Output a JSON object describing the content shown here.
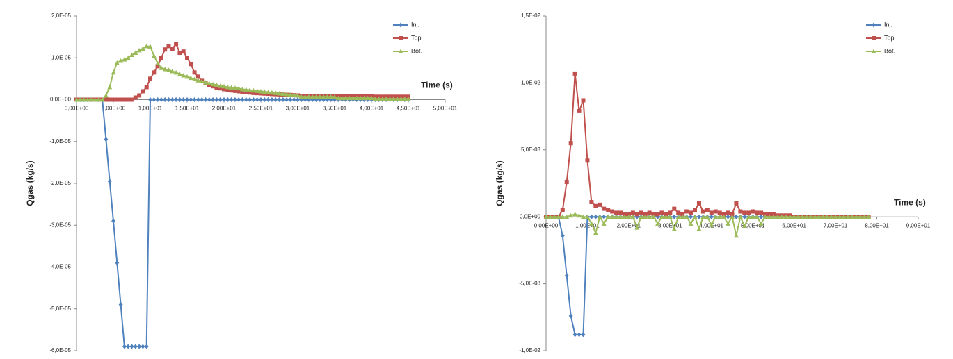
{
  "chart_data": [
    {
      "type": "line",
      "x_label": "Time (s)",
      "y_label": "Qgas  (kg/s)",
      "legend": "upper right",
      "xlim": [
        0,
        50
      ],
      "ylim": [
        -6e-05,
        2e-05
      ],
      "xticks": [
        {
          "value": 0,
          "label": "0,00E+00"
        },
        {
          "value": 5,
          "label": "5,00E+00"
        },
        {
          "value": 10,
          "label": "1,00E+01"
        },
        {
          "value": 15,
          "label": "1,50E+01"
        },
        {
          "value": 20,
          "label": "2,00E+01"
        },
        {
          "value": 25,
          "label": "2,50E+01"
        },
        {
          "value": 30,
          "label": "3,00E+01"
        },
        {
          "value": 35,
          "label": "3,50E+01"
        },
        {
          "value": 40,
          "label": "4,00E+01"
        },
        {
          "value": 45,
          "label": "4,50E+01"
        },
        {
          "value": 50,
          "label": "5,00E+01"
        }
      ],
      "yticks": [
        {
          "value": 2e-05,
          "label": "2,0E-05"
        },
        {
          "value": 1e-05,
          "label": "1,0E-05"
        },
        {
          "value": 0,
          "label": "0,0E+00"
        },
        {
          "value": -1e-05,
          "label": "-1,0E-05"
        },
        {
          "value": -2e-05,
          "label": "-2,0E-05"
        },
        {
          "value": -3e-05,
          "label": "-3,0E-05"
        },
        {
          "value": -4e-05,
          "label": "-4,0E-05"
        },
        {
          "value": -5e-05,
          "label": "-5,0E-05"
        },
        {
          "value": -6e-05,
          "label": "-6,0E-05"
        }
      ],
      "x": [
        0,
        0.5,
        1,
        1.5,
        2,
        2.5,
        3,
        3.5,
        4,
        4.5,
        5,
        5.5,
        6,
        6.5,
        7,
        7.5,
        8,
        8.5,
        9,
        9.5,
        10,
        10.5,
        11,
        11.5,
        12,
        12.5,
        13,
        13.5,
        14,
        14.5,
        15,
        15.5,
        16,
        16.5,
        17,
        17.5,
        18,
        18.5,
        19,
        19.5,
        20,
        20.5,
        21,
        21.5,
        22,
        22.5,
        23,
        23.5,
        24,
        24.5,
        25,
        25.5,
        26,
        26.5,
        27,
        27.5,
        28,
        28.5,
        29,
        29.5,
        30,
        30.5,
        31,
        31.5,
        32,
        32.5,
        33,
        33.5,
        34,
        34.5,
        35,
        35.5,
        36,
        36.5,
        37,
        37.5,
        38,
        38.5,
        39,
        39.5,
        40,
        40.5,
        41,
        41.5,
        42,
        42.5,
        43,
        43.5,
        44,
        44.5,
        45
      ],
      "series": [
        {
          "name": "Inj.",
          "color": "#4f81bd",
          "marker": "diamond",
          "values": [
            0,
            0,
            0,
            0,
            0,
            0,
            0,
            0,
            -9.5e-06,
            -1.95e-05,
            -2.9e-05,
            -3.9e-05,
            -4.9e-05,
            -5.9e-05,
            -5.9e-05,
            -5.9e-05,
            -5.9e-05,
            -5.9e-05,
            -5.9e-05,
            -5.9e-05,
            0,
            0,
            0,
            0,
            0,
            0,
            0,
            0,
            0,
            0,
            0,
            0,
            0,
            0,
            0,
            0,
            0,
            0,
            0,
            0,
            0,
            0,
            0,
            0,
            0,
            0,
            0,
            0,
            0,
            0,
            0,
            0,
            0,
            0,
            0,
            0,
            0,
            0,
            0,
            0,
            0,
            0,
            0,
            0,
            0,
            0,
            0,
            0,
            0,
            0,
            0,
            0,
            0,
            0,
            0,
            0,
            0,
            0,
            0,
            0,
            0,
            0,
            0,
            0,
            0,
            0,
            0,
            0,
            0,
            0,
            0
          ]
        },
        {
          "name": "Top",
          "color": "#c0504d",
          "marker": "square",
          "values": [
            0,
            0,
            0,
            0,
            0,
            0,
            0,
            0,
            0,
            0,
            0,
            0,
            0,
            0,
            0,
            0,
            5e-07,
            1e-06,
            2e-06,
            3e-06,
            5e-06,
            6.5e-06,
            8e-06,
            1e-05,
            1.2e-05,
            1.28e-05,
            1.22e-05,
            1.33e-05,
            1.12e-05,
            1.15e-05,
            1e-05,
            8.5e-06,
            6.5e-06,
            5.5e-06,
            4.5e-06,
            4e-06,
            3.5e-06,
            3.2e-06,
            2.9e-06,
            2.7e-06,
            2.5e-06,
            2.3e-06,
            2.2e-06,
            2.1e-06,
            2e-06,
            1.9e-06,
            1.8e-06,
            1.7e-06,
            1.6e-06,
            1.55e-06,
            1.5e-06,
            1.45e-06,
            1.4e-06,
            1.35e-06,
            1.3e-06,
            1.25e-06,
            1.2e-06,
            1.15e-06,
            1.1e-06,
            1.05e-06,
            1e-06,
            9e-07,
            9e-07,
            9e-07,
            9e-07,
            9e-07,
            9e-07,
            9e-07,
            9e-07,
            9e-07,
            9e-07,
            8e-07,
            8e-07,
            8e-07,
            8e-07,
            8e-07,
            8e-07,
            8e-07,
            8e-07,
            8e-07,
            8e-07,
            7e-07,
            7e-07,
            7e-07,
            7e-07,
            7e-07,
            7e-07,
            7e-07,
            7e-07,
            7e-07,
            7e-07
          ]
        },
        {
          "name": "Bot.",
          "color": "#9bbb59",
          "marker": "triangle",
          "values": [
            0,
            0,
            0,
            0,
            0,
            0,
            0,
            0,
            1e-06,
            3e-06,
            6.5e-06,
            8.8e-06,
            9.3e-06,
            9.6e-06,
            1e-05,
            1.07e-05,
            1.12e-05,
            1.18e-05,
            1.22e-05,
            1.28e-05,
            1.27e-05,
            1.05e-05,
            8.7e-06,
            7.6e-06,
            7.3e-06,
            7.1e-06,
            6.8e-06,
            6.5e-06,
            6.1e-06,
            5.8e-06,
            5.5e-06,
            5.2e-06,
            4.9e-06,
            4.6e-06,
            4.4e-06,
            4.1e-06,
            3.9e-06,
            3.7e-06,
            3.5e-06,
            3.3e-06,
            3.2e-06,
            3e-06,
            2.9e-06,
            2.8e-06,
            2.7e-06,
            2.5e-06,
            2.4e-06,
            2.3e-06,
            2.2e-06,
            2.1e-06,
            2e-06,
            1.9e-06,
            1.8e-06,
            1.7e-06,
            1.6e-06,
            1.5e-06,
            1.4e-06,
            1.3e-06,
            1.2e-06,
            1.1e-06,
            1e-06,
            7e-07,
            7e-07,
            7e-07,
            7e-07,
            7e-07,
            7e-07,
            7e-07,
            7e-07,
            7e-07,
            7e-07,
            4e-07,
            4e-07,
            4e-07,
            4e-07,
            4e-07,
            4e-07,
            4e-07,
            4e-07,
            4e-07,
            4e-07,
            2e-07,
            2e-07,
            2e-07,
            2e-07,
            2e-07,
            2e-07,
            2e-07,
            2e-07,
            2e-07,
            2e-07
          ]
        }
      ]
    },
    {
      "type": "line",
      "x_label": "Time (s)",
      "y_label": "Qgas  (kg/s)",
      "legend": "upper right",
      "xlim": [
        0,
        90
      ],
      "ylim": [
        -0.01,
        0.015
      ],
      "xticks": [
        {
          "value": 0,
          "label": "0,00E+00"
        },
        {
          "value": 10,
          "label": "1,00E+01"
        },
        {
          "value": 20,
          "label": "2,00E+01"
        },
        {
          "value": 30,
          "label": "3,00E+01"
        },
        {
          "value": 40,
          "label": "4,00E+01"
        },
        {
          "value": 50,
          "label": "5,00E+01"
        },
        {
          "value": 60,
          "label": "6,00E+01"
        },
        {
          "value": 70,
          "label": "7,00E+01"
        },
        {
          "value": 80,
          "label": "8,00E+01"
        },
        {
          "value": 90,
          "label": "9,00E+01"
        }
      ],
      "yticks": [
        {
          "value": 0.015,
          "label": "1,5E-02"
        },
        {
          "value": 0.01,
          "label": "1,0E-02"
        },
        {
          "value": 0.005,
          "label": "5,0E-03"
        },
        {
          "value": 0,
          "label": "0,0E+00"
        },
        {
          "value": -0.005,
          "label": "-5,0E-03"
        },
        {
          "value": -0.01,
          "label": "-1,0E-02"
        }
      ],
      "x": [
        0,
        1,
        2,
        3,
        4,
        5,
        6,
        7,
        8,
        9,
        10,
        11,
        12,
        13,
        14,
        15,
        16,
        17,
        18,
        19,
        20,
        21,
        22,
        23,
        24,
        25,
        26,
        27,
        28,
        29,
        30,
        31,
        32,
        33,
        34,
        35,
        36,
        37,
        38,
        39,
        40,
        41,
        42,
        43,
        44,
        45,
        46,
        47,
        48,
        49,
        50,
        51,
        52,
        53,
        54,
        55,
        56,
        57,
        58,
        59,
        60,
        61,
        62,
        63,
        64,
        65,
        66,
        67,
        68,
        69,
        70,
        71,
        72,
        73,
        74,
        75,
        76,
        77,
        78
      ],
      "series": [
        {
          "name": "Inj.",
          "color": "#4f81bd",
          "marker": "diamond",
          "values": [
            0,
            0,
            0,
            0,
            -0.0014,
            -0.0044,
            -0.0074,
            -0.0088,
            -0.0088,
            -0.0088,
            0,
            0,
            0,
            0,
            0,
            0,
            0,
            0,
            0,
            0,
            0,
            0,
            0,
            0,
            0,
            0,
            0,
            0,
            0,
            0,
            0,
            0,
            0,
            0,
            0,
            0,
            0,
            0,
            0,
            0,
            0,
            0,
            0,
            0,
            0,
            0,
            0,
            0,
            0,
            0,
            0,
            0,
            0,
            0,
            0,
            0,
            0,
            0,
            0,
            0,
            0,
            0,
            0,
            0,
            0,
            0,
            0,
            0,
            0,
            0,
            0,
            0,
            0,
            0,
            0,
            0,
            0,
            0,
            0
          ]
        },
        {
          "name": "Top",
          "color": "#c0504d",
          "marker": "square",
          "values": [
            0,
            0,
            0,
            0,
            0.0005,
            0.0026,
            0.0055,
            0.0107,
            0.0079,
            0.0087,
            0.0042,
            0.0011,
            0.0008,
            0.0009,
            0.0006,
            0.0005,
            0.0004,
            0.0003,
            0.0003,
            0.0002,
            0.0002,
            0.0003,
            0.0002,
            0.0003,
            0.0002,
            0.0003,
            0.0002,
            0.0002,
            0.0003,
            0.0002,
            0.0003,
            0.0006,
            0.0003,
            0.0002,
            0.0004,
            0.0003,
            0.0005,
            0.001,
            0.0004,
            0.0005,
            0.0003,
            0.0004,
            0.0003,
            0.0002,
            0.0003,
            0.0002,
            0.001,
            0.0004,
            0.0003,
            0.0003,
            0.0004,
            0.0003,
            0.0003,
            0.0002,
            0.0002,
            0.0002,
            0.0001,
            0.0001,
            0.0001,
            0.0001,
            0,
            0,
            0,
            0,
            0,
            0,
            0,
            0,
            0,
            0,
            0,
            0,
            0,
            0,
            0,
            0,
            0,
            0,
            0
          ]
        },
        {
          "name": "Bot.",
          "color": "#9bbb59",
          "marker": "triangle",
          "values": [
            0,
            0,
            0,
            0,
            0,
            0,
            0.0001,
            0.0002,
            0.0001,
            0,
            0,
            -0.0005,
            -0.0012,
            0,
            -0.0005,
            0,
            0,
            0,
            0,
            0,
            0,
            0,
            -0.0008,
            0,
            0,
            0,
            0,
            -0.0005,
            0,
            0,
            0,
            -0.0009,
            0,
            0,
            0,
            -0.0005,
            0,
            -0.0009,
            0,
            0,
            -0.0006,
            0,
            0,
            0,
            -0.0005,
            0,
            -0.0014,
            0,
            -0.0007,
            0,
            0,
            0,
            -0.0005,
            0,
            0,
            0,
            0,
            0,
            0,
            0,
            0,
            0,
            0,
            0,
            0,
            0,
            0,
            0,
            0,
            0,
            0,
            0,
            0,
            0,
            0,
            0,
            0,
            0,
            0
          ]
        }
      ]
    }
  ]
}
